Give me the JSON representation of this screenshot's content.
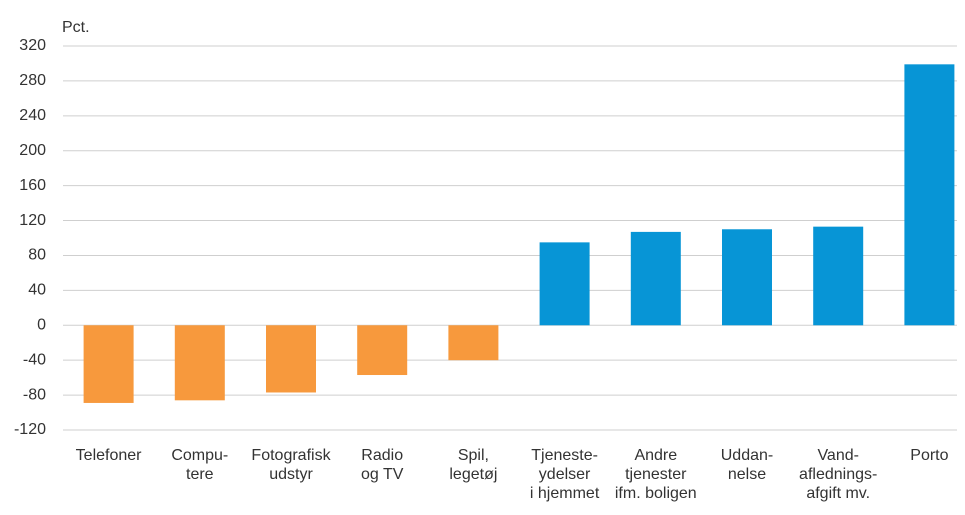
{
  "chart_data": {
    "type": "bar",
    "y_label": "Pct.",
    "categories": [
      [
        "Telefoner"
      ],
      [
        "Compu-",
        "tere"
      ],
      [
        "Fotografisk",
        "udstyr"
      ],
      [
        "Radio",
        "og TV"
      ],
      [
        "Spil,",
        "legetøj"
      ],
      [
        "Tjeneste-",
        "ydelser",
        "i hjemmet"
      ],
      [
        "Andre",
        "tjenester",
        "ifm. boligen"
      ],
      [
        "Uddan-",
        "nelse"
      ],
      [
        "Vand-",
        "aflednings-",
        "afgift mv."
      ],
      [
        "Porto"
      ]
    ],
    "values": [
      -89,
      -86,
      -77,
      -57,
      -40,
      95,
      107,
      110,
      113,
      299
    ],
    "colors": [
      "#f7993d",
      "#f7993d",
      "#f7993d",
      "#f7993d",
      "#f7993d",
      "#0795d6",
      "#0795d6",
      "#0795d6",
      "#0795d6",
      "#0795d6"
    ],
    "ylim": [
      -120,
      320
    ],
    "yticks": [
      -120,
      -80,
      -40,
      0,
      40,
      80,
      120,
      160,
      200,
      240,
      280,
      320
    ],
    "grid": true
  }
}
